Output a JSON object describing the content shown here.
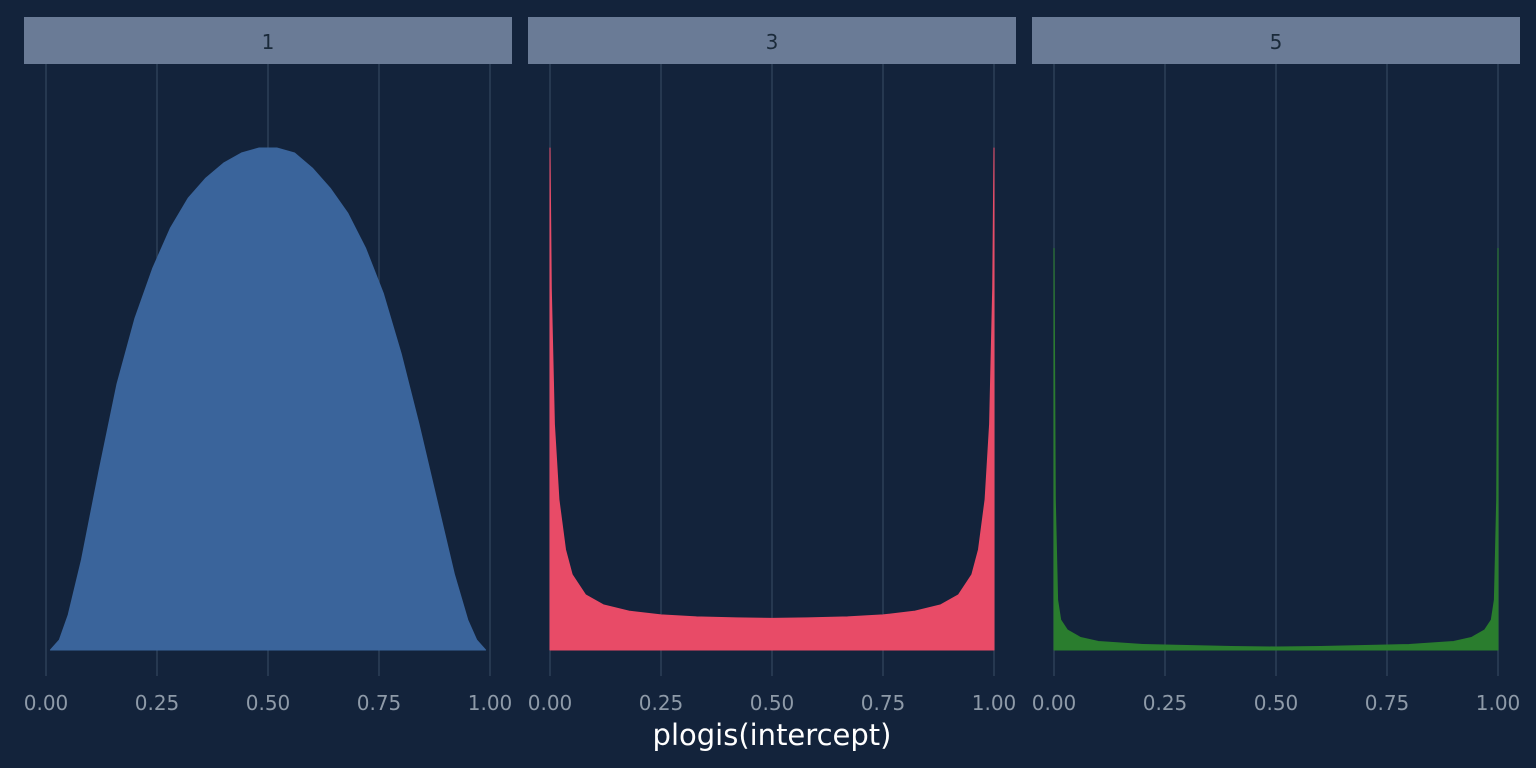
{
  "chart_data": {
    "type": "area",
    "title": "",
    "xlabel": "plogis(intercept)",
    "ylabel": "",
    "xlim": [
      0,
      1
    ],
    "x_ticks": [
      0,
      0.25,
      0.5,
      0.75,
      1
    ],
    "x_tick_labels": [
      "0.00",
      "0.25",
      "0.50",
      "0.75",
      "1.00"
    ],
    "y_ticks_shown": false,
    "grid": "vertical major lines",
    "legend": "none",
    "colors": {
      "background": "#13233b",
      "strip": "#6a7b96",
      "grid": "#2e4159"
    },
    "facets": [
      {
        "label": "1",
        "color": "#3a649b",
        "curve": {
          "x": [
            0.01,
            0.03,
            0.05,
            0.08,
            0.12,
            0.16,
            0.2,
            0.24,
            0.28,
            0.32,
            0.36,
            0.4,
            0.44,
            0.48,
            0.5,
            0.52,
            0.56,
            0.6,
            0.64,
            0.68,
            0.72,
            0.76,
            0.8,
            0.84,
            0.88,
            0.92,
            0.95,
            0.97,
            0.99
          ],
          "density": [
            0.0,
            0.02,
            0.07,
            0.18,
            0.36,
            0.53,
            0.66,
            0.76,
            0.84,
            0.9,
            0.94,
            0.97,
            0.99,
            1.0,
            1.0,
            1.0,
            0.99,
            0.96,
            0.92,
            0.87,
            0.8,
            0.71,
            0.59,
            0.45,
            0.3,
            0.15,
            0.06,
            0.02,
            0.0
          ]
        }
      },
      {
        "label": "3",
        "color": "#e84b67",
        "curve": {
          "x": [
            0.0,
            0.003,
            0.01,
            0.02,
            0.035,
            0.05,
            0.08,
            0.12,
            0.18,
            0.25,
            0.33,
            0.42,
            0.5,
            0.58,
            0.67,
            0.75,
            0.82,
            0.88,
            0.92,
            0.95,
            0.965,
            0.98,
            0.99,
            0.997,
            1.0
          ],
          "density": [
            1.0,
            0.72,
            0.45,
            0.3,
            0.2,
            0.15,
            0.11,
            0.09,
            0.077,
            0.07,
            0.066,
            0.064,
            0.063,
            0.064,
            0.066,
            0.07,
            0.077,
            0.09,
            0.11,
            0.15,
            0.2,
            0.3,
            0.45,
            0.72,
            1.0
          ]
        }
      },
      {
        "label": "5",
        "color": "#2a7d2e",
        "curve": {
          "x": [
            0.0,
            0.003,
            0.008,
            0.015,
            0.03,
            0.06,
            0.1,
            0.2,
            0.3,
            0.4,
            0.5,
            0.6,
            0.7,
            0.8,
            0.9,
            0.94,
            0.97,
            0.985,
            0.992,
            0.997,
            1.0
          ],
          "density": [
            0.8,
            0.3,
            0.1,
            0.06,
            0.04,
            0.025,
            0.017,
            0.011,
            0.009,
            0.007,
            0.006,
            0.007,
            0.009,
            0.011,
            0.017,
            0.025,
            0.04,
            0.06,
            0.1,
            0.3,
            0.8
          ]
        }
      }
    ]
  }
}
